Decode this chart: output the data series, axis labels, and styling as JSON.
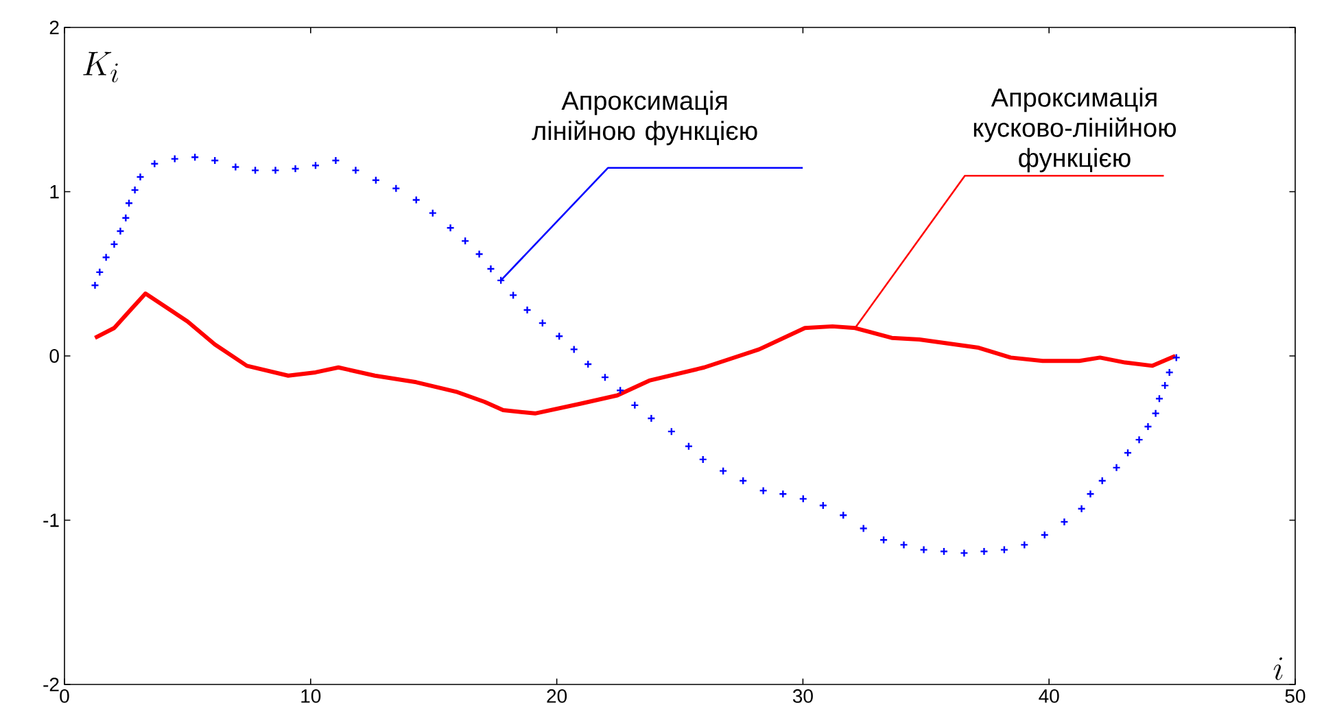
{
  "chart_data": {
    "type": "line",
    "xlabel": "i",
    "ylabel": "K_i",
    "xlim": [
      0,
      50
    ],
    "ylim": [
      -2,
      2
    ],
    "xticks": [
      0,
      10,
      20,
      30,
      40,
      50
    ],
    "yticks": [
      -2,
      -1,
      0,
      1,
      2
    ],
    "grid": false,
    "series": [
      {
        "type": "scatter",
        "marker": "cross",
        "color": "#0000ff",
        "x": [
          1.24,
          1.43,
          1.69,
          2.02,
          2.27,
          2.49,
          2.62,
          2.86,
          3.08,
          3.66,
          4.48,
          5.3,
          6.11,
          6.95,
          7.75,
          8.57,
          9.38,
          10.2,
          11.02,
          11.83,
          12.65,
          13.47,
          14.29,
          14.96,
          15.68,
          16.28,
          16.85,
          17.32,
          17.73,
          18.23,
          18.8,
          19.42,
          20.1,
          20.7,
          21.27,
          21.96,
          22.58,
          23.17,
          23.84,
          24.66,
          25.36,
          25.94,
          26.76,
          27.57,
          28.39,
          29.19,
          30.01,
          30.82,
          31.64,
          32.46,
          33.28,
          34.1,
          34.91,
          35.73,
          36.55,
          37.36,
          38.18,
          39.0,
          39.82,
          40.62,
          41.32,
          41.68,
          42.16,
          42.74,
          43.2,
          43.66,
          44.02,
          44.33,
          44.48,
          44.71,
          44.89,
          45.17
        ],
        "values": [
          0.43,
          0.51,
          0.6,
          0.68,
          0.76,
          0.84,
          0.93,
          1.01,
          1.09,
          1.17,
          1.2,
          1.21,
          1.19,
          1.15,
          1.13,
          1.13,
          1.14,
          1.16,
          1.19,
          1.13,
          1.07,
          1.02,
          0.95,
          0.87,
          0.78,
          0.7,
          0.62,
          0.53,
          0.46,
          0.37,
          0.28,
          0.2,
          0.12,
          0.04,
          -0.05,
          -0.13,
          -0.21,
          -0.3,
          -0.38,
          -0.46,
          -0.55,
          -0.63,
          -0.7,
          -0.76,
          -0.82,
          -0.84,
          -0.87,
          -0.91,
          -0.97,
          -1.05,
          -1.12,
          -1.15,
          -1.18,
          -1.19,
          -1.2,
          -1.19,
          -1.18,
          -1.15,
          -1.09,
          -1.01,
          -0.93,
          -0.84,
          -0.76,
          -0.68,
          -0.59,
          -0.51,
          -0.43,
          -0.35,
          -0.26,
          -0.18,
          -0.1,
          -0.01
        ]
      },
      {
        "line_style": "solid",
        "color": "#ff0000",
        "x": [
          1.24,
          2.02,
          2.68,
          3.29,
          5.0,
          6.11,
          7.41,
          9.09,
          10.2,
          11.13,
          12.61,
          14.29,
          15.96,
          17.07,
          17.82,
          19.12,
          20.98,
          22.46,
          23.76,
          25.99,
          28.22,
          30.08,
          31.2,
          32.12,
          33.61,
          34.73,
          37.14,
          38.44,
          39.74,
          41.23,
          42.07,
          43.09,
          44.2,
          45.13
        ],
        "values": [
          0.11,
          0.17,
          0.28,
          0.38,
          0.21,
          0.07,
          -0.06,
          -0.12,
          -0.1,
          -0.07,
          -0.12,
          -0.16,
          -0.22,
          -0.28,
          -0.33,
          -0.35,
          -0.29,
          -0.24,
          -0.15,
          -0.07,
          0.04,
          0.17,
          0.18,
          0.17,
          0.11,
          0.1,
          0.05,
          -0.01,
          -0.03,
          -0.03,
          -0.01,
          -0.04,
          -0.06,
          0.0
        ]
      }
    ],
    "annotations": [
      {
        "text": "Апроксимація лінійною функцією",
        "x": 17.73,
        "y": 0.46
      },
      {
        "text": "Апроксимація кусково-лінійною функцією",
        "x": 32.12,
        "y": 0.17
      }
    ]
  }
}
